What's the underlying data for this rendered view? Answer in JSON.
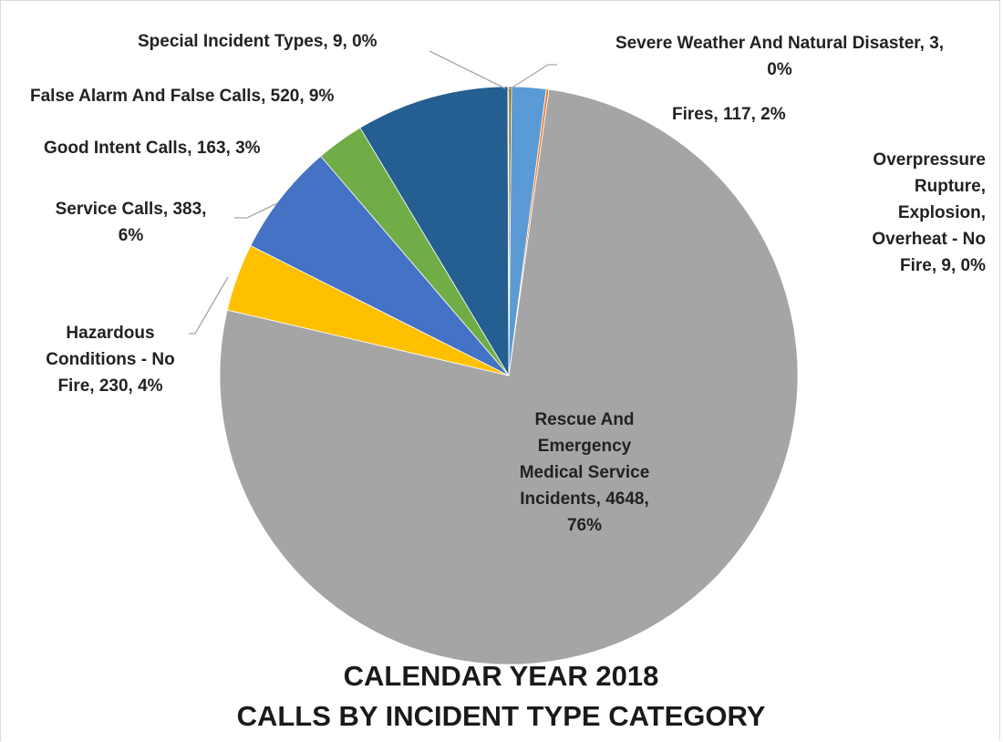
{
  "chart_data": {
    "type": "pie",
    "title": "CALENDAR YEAR 2018\nCALLS BY INCIDENT TYPE CATEGORY",
    "title_lines": [
      "CALENDAR YEAR 2018",
      "CALLS BY INCIDENT TYPE CATEGORY"
    ],
    "slices": [
      {
        "name": "Special Incident Types",
        "value": 9,
        "percent": "0%",
        "color": "#7f6000",
        "label": "Special Incident Types, 9, 0%"
      },
      {
        "name": "Fires",
        "value": 117,
        "percent": "2%",
        "color": "#5b9bd5",
        "label": "Fires, 117, 2%"
      },
      {
        "name": "Overpressure Rupture, Explosion, Overheat - No Fire",
        "value": 9,
        "percent": "0%",
        "color": "#ed7d31",
        "label": "Overpressure\nRupture,\nExplosion,\nOverheat - No\nFire, 9, 0%"
      },
      {
        "name": "Rescue And Emergency Medical Service Incidents",
        "value": 4648,
        "percent": "76%",
        "color": "#a5a5a5",
        "label": "Rescue And\nEmergency\nMedical Service\nIncidents, 4648,\n76%"
      },
      {
        "name": "Hazardous Conditions - No Fire",
        "value": 230,
        "percent": "4%",
        "color": "#ffc000",
        "label": "Hazardous\nConditions - No\nFire, 230, 4%"
      },
      {
        "name": "Service Calls",
        "value": 383,
        "percent": "6%",
        "color": "#4472c4",
        "label": "Service Calls, 383,\n6%"
      },
      {
        "name": "Good Intent Calls",
        "value": 163,
        "percent": "3%",
        "color": "#70ad47",
        "label": "Good Intent Calls, 163, 3%"
      },
      {
        "name": "False Alarm And False Calls",
        "value": 520,
        "percent": "9%",
        "color": "#255e91",
        "label": "False Alarm And False Calls, 520, 9%"
      },
      {
        "name": "Severe Weather And Natural Disaster",
        "value": 3,
        "percent": "0%",
        "color": "#43682b",
        "label": "Severe Weather And Natural Disaster, 3,\n0%"
      }
    ]
  }
}
